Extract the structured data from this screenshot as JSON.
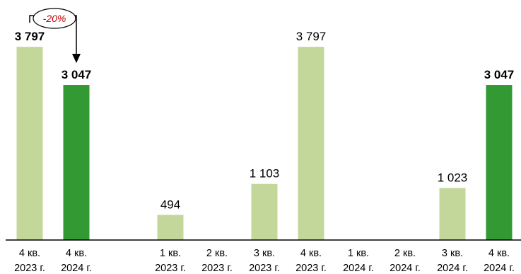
{
  "chart_data": {
    "type": "bar",
    "ylim": [
      0,
      4300
    ],
    "bars": [
      {
        "category": [
          "4 кв.",
          "2023 г."
        ],
        "value": 3797,
        "label": "3 797",
        "bold": true,
        "color": "#c4d79b"
      },
      {
        "category": [
          "4 кв.",
          "2024 г."
        ],
        "value": 3047,
        "label": "3 047",
        "bold": true,
        "color": "#339933"
      },
      {
        "category": [
          "1 кв.",
          "2023 г."
        ],
        "value": 494,
        "label": "494",
        "bold": false,
        "color": "#c4d79b"
      },
      {
        "category": [
          "2 кв.",
          "2023 г."
        ],
        "value": null,
        "label": "",
        "bold": false,
        "color": "#c4d79b"
      },
      {
        "category": [
          "3 кв.",
          "2023 г."
        ],
        "value": 1103,
        "label": "1 103",
        "bold": false,
        "color": "#c4d79b"
      },
      {
        "category": [
          "4 кв.",
          "2023 г."
        ],
        "value": 3797,
        "label": "3 797",
        "bold": false,
        "color": "#c4d79b"
      },
      {
        "category": [
          "1 кв.",
          "2024 г."
        ],
        "value": null,
        "label": "",
        "bold": false,
        "color": "#c4d79b"
      },
      {
        "category": [
          "2 кв.",
          "2024 г."
        ],
        "value": null,
        "label": "",
        "bold": false,
        "color": "#c4d79b"
      },
      {
        "category": [
          "3 кв.",
          "2024 г."
        ],
        "value": 1023,
        "label": "1 023",
        "bold": false,
        "color": "#c4d79b"
      },
      {
        "category": [
          "4 кв.",
          "2024 г."
        ],
        "value": 3047,
        "label": "3 047",
        "bold": true,
        "color": "#339933"
      }
    ],
    "annotation": {
      "text": "-20%",
      "from_bar": 0,
      "to_bar": 1,
      "color": "#c00000"
    }
  }
}
